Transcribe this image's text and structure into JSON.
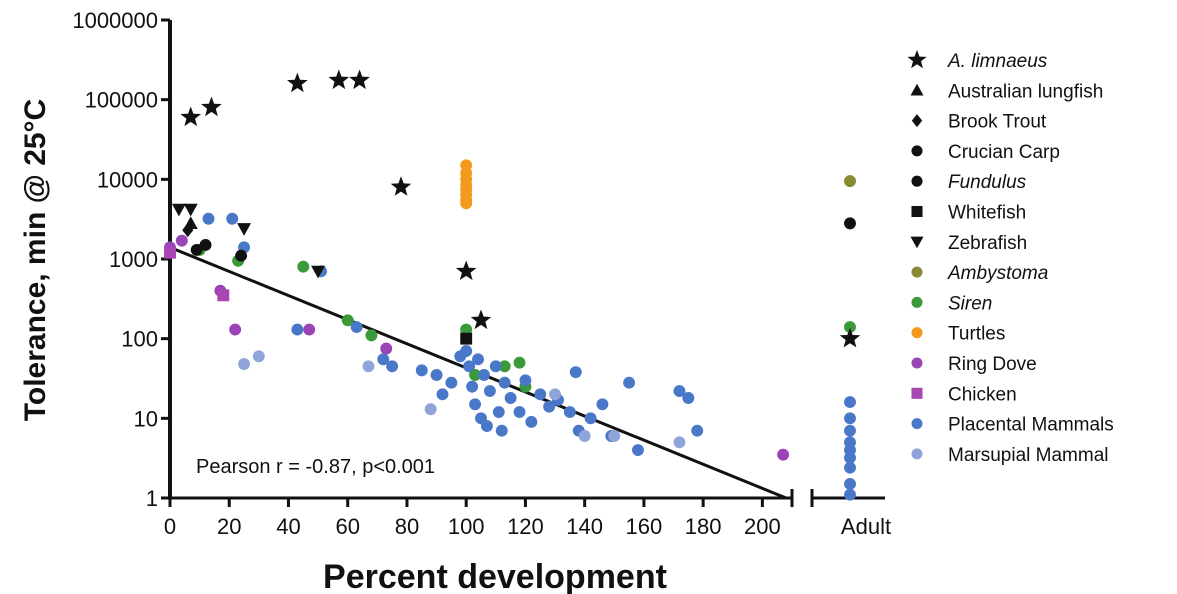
{
  "chart_data": {
    "type": "scatter",
    "title": "",
    "xlabel": "Percent development",
    "ylabel": "Tolerance, min @ 25°C",
    "x_scale": "linear",
    "y_scale": "log",
    "xlim": [
      0,
      210
    ],
    "ylim": [
      1,
      1000000
    ],
    "x_ticks": [
      "0",
      "20",
      "40",
      "60",
      "80",
      "100",
      "120",
      "140",
      "160",
      "180",
      "200"
    ],
    "y_ticks": [
      "1",
      "10",
      "100",
      "1000",
      "10000",
      "100000",
      "1000000"
    ],
    "adult_label": "Adult",
    "annotation": "Pearson r = -0.87, p<0.001",
    "regression_line": {
      "x": [
        0,
        208
      ],
      "y": [
        1400,
        1
      ]
    },
    "grid": false,
    "legend_position": "right",
    "series": [
      {
        "name": "A. limnaeus",
        "italic": true,
        "marker": "star",
        "color": "#111111",
        "points": [
          [
            7,
            60000
          ],
          [
            14,
            80000
          ],
          [
            43,
            160000
          ],
          [
            57,
            175000
          ],
          [
            64,
            175000
          ],
          [
            78,
            8000
          ],
          [
            100,
            700
          ],
          [
            105,
            170
          ]
        ],
        "adult": [
          100
        ]
      },
      {
        "name": "Australian lungfish",
        "italic": false,
        "marker": "triangle",
        "color": "#111111",
        "points": [
          [
            7,
            2800
          ]
        ],
        "adult": []
      },
      {
        "name": "Brook Trout",
        "italic": false,
        "marker": "diamond",
        "color": "#111111",
        "points": [
          [
            6,
            2300
          ]
        ],
        "adult": []
      },
      {
        "name": "Crucian Carp",
        "italic": false,
        "marker": "circle",
        "color": "#111111",
        "points": [
          [
            12,
            1500
          ],
          [
            24,
            1100
          ]
        ],
        "adult": []
      },
      {
        "name": "Fundulus",
        "italic": true,
        "marker": "circle",
        "color": "#111111",
        "points": [
          [
            9,
            1300
          ]
        ],
        "adult": [
          2800
        ]
      },
      {
        "name": "Whitefish",
        "italic": false,
        "marker": "square",
        "color": "#111111",
        "points": [
          [
            100,
            100
          ]
        ],
        "adult": []
      },
      {
        "name": "Zebrafish",
        "italic": false,
        "marker": "triangle-down",
        "color": "#111111",
        "points": [
          [
            3,
            4200
          ],
          [
            7,
            4200
          ],
          [
            25,
            2400
          ],
          [
            50,
            700
          ]
        ],
        "adult": []
      },
      {
        "name": "Ambystoma",
        "italic": true,
        "marker": "circle",
        "color": "#8a8a35",
        "points": [],
        "adult": [
          9500
        ]
      },
      {
        "name": "Siren",
        "italic": true,
        "marker": "circle",
        "color": "#3a9a3a",
        "points": [
          [
            10,
            1300
          ],
          [
            23,
            950
          ],
          [
            45,
            800
          ],
          [
            60,
            170
          ],
          [
            68,
            110
          ],
          [
            100,
            130
          ],
          [
            103,
            35
          ],
          [
            113,
            45
          ],
          [
            118,
            50
          ],
          [
            120,
            25
          ]
        ],
        "adult": [
          140
        ]
      },
      {
        "name": "Turtles",
        "italic": false,
        "marker": "circle",
        "color": "#f39a1e",
        "points": [
          [
            100,
            15000
          ],
          [
            100,
            12000
          ],
          [
            100,
            10000
          ],
          [
            100,
            8500
          ],
          [
            100,
            7500
          ],
          [
            100,
            6500
          ],
          [
            100,
            5500
          ],
          [
            100,
            5000
          ]
        ],
        "adult": []
      },
      {
        "name": "Ring Dove",
        "italic": false,
        "marker": "circle",
        "color": "#9945b5",
        "points": [
          [
            0,
            1400
          ],
          [
            4,
            1700
          ],
          [
            17,
            400
          ],
          [
            22,
            130
          ],
          [
            47,
            130
          ],
          [
            73,
            75
          ],
          [
            207,
            3.5
          ]
        ],
        "adult": []
      },
      {
        "name": "Chicken",
        "italic": false,
        "marker": "square",
        "color": "#a846b2",
        "points": [
          [
            0,
            1200
          ],
          [
            18,
            350
          ]
        ],
        "adult": []
      },
      {
        "name": "Placental Mammals",
        "italic": false,
        "marker": "circle",
        "color": "#4a78c8",
        "points": [
          [
            13,
            3200
          ],
          [
            21,
            3200
          ],
          [
            25,
            1400
          ],
          [
            43,
            130
          ],
          [
            51,
            700
          ],
          [
            63,
            140
          ],
          [
            72,
            55
          ],
          [
            75,
            45
          ],
          [
            85,
            40
          ],
          [
            90,
            35
          ],
          [
            92,
            20
          ],
          [
            95,
            28
          ],
          [
            98,
            60
          ],
          [
            100,
            70
          ],
          [
            101,
            45
          ],
          [
            102,
            25
          ],
          [
            103,
            15
          ],
          [
            104,
            55
          ],
          [
            105,
            10
          ],
          [
            106,
            35
          ],
          [
            107,
            8
          ],
          [
            108,
            22
          ],
          [
            110,
            45
          ],
          [
            111,
            12
          ],
          [
            112,
            7
          ],
          [
            113,
            28
          ],
          [
            115,
            18
          ],
          [
            118,
            12
          ],
          [
            120,
            30
          ],
          [
            122,
            9
          ],
          [
            125,
            20
          ],
          [
            128,
            14
          ],
          [
            131,
            17
          ],
          [
            135,
            12
          ],
          [
            137,
            38
          ],
          [
            138,
            7
          ],
          [
            142,
            10
          ],
          [
            146,
            15
          ],
          [
            149,
            6
          ],
          [
            155,
            28
          ],
          [
            158,
            4
          ],
          [
            172,
            22
          ],
          [
            175,
            18
          ],
          [
            178,
            7
          ]
        ],
        "adult": [
          16,
          10,
          7,
          5,
          4,
          3.2,
          2.4,
          1.5,
          1.1
        ]
      },
      {
        "name": "Marsupial Mammal",
        "italic": false,
        "marker": "circle",
        "color": "#8fa4d8",
        "points": [
          [
            25,
            48
          ],
          [
            30,
            60
          ],
          [
            67,
            45
          ],
          [
            88,
            13
          ],
          [
            130,
            20
          ],
          [
            140,
            6
          ],
          [
            150,
            6
          ],
          [
            172,
            5
          ]
        ],
        "adult": []
      }
    ]
  }
}
